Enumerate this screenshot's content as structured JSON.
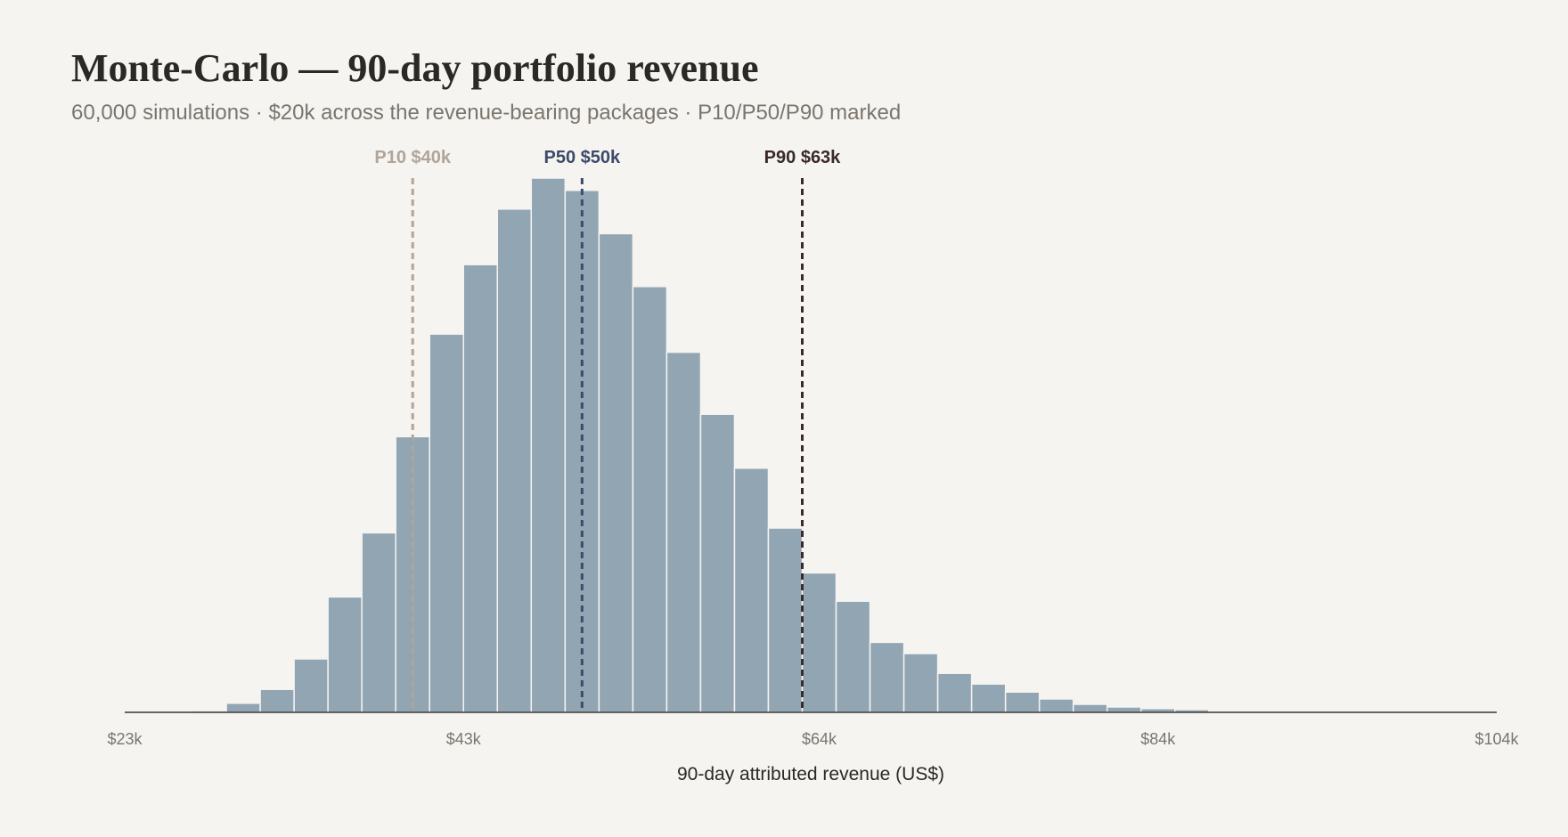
{
  "header": {
    "title": "Monte-Carlo — 90-day portfolio revenue",
    "subtitle": "60,000 simulations · $20k across the revenue-bearing packages · P10/P50/P90 marked"
  },
  "chart_data": {
    "type": "bar",
    "title": "Monte-Carlo — 90-day portfolio revenue",
    "subtitle": "60,000 simulations · $20k across the revenue-bearing packages · P10/P50/P90 marked",
    "xlabel": "90-day attributed revenue (US$)",
    "ylabel": "",
    "grid": false,
    "xlim": [
      23,
      104
    ],
    "xticks": [
      23,
      43,
      64,
      84,
      104
    ],
    "xtick_labels": [
      "$23k",
      "$43k",
      "$64k",
      "$84k",
      "$104k"
    ],
    "bin_start": 23,
    "bin_width": 2,
    "bar_color": "#92a5b3",
    "values": [
      0,
      0,
      0.3,
      1.7,
      4.3,
      10.0,
      21.6,
      33.6,
      51.6,
      70.8,
      83.8,
      94.2,
      100,
      97.7,
      89.6,
      79.7,
      67.4,
      55.8,
      45.7,
      34.5,
      26.1,
      20.8,
      13.1,
      11.0,
      7.3,
      5.3,
      3.8,
      2.5,
      1.5,
      1.0,
      0.7,
      0.5,
      0.2,
      0.1,
      0.2,
      0.1,
      0.1,
      0.1,
      0.1,
      0.1
    ],
    "ylim": [
      0,
      100
    ],
    "markers": [
      {
        "label": "P10 $40k",
        "value": 40,
        "color": "#b0a598"
      },
      {
        "label": "P50 $50k",
        "value": 50,
        "color": "#3d4a6a"
      },
      {
        "label": "P90 $63k",
        "value": 63,
        "color": "#3a2a2a"
      }
    ]
  }
}
